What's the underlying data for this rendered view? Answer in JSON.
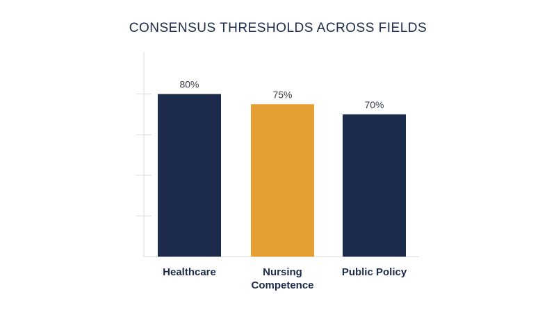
{
  "chart_data": {
    "type": "bar",
    "title": "CONSENSUS THRESHOLDS ACROSS FIELDS",
    "categories": [
      [
        "Healthcare"
      ],
      [
        "Nursing",
        "Competence"
      ],
      [
        "Public Policy"
      ]
    ],
    "values": [
      80,
      75,
      70
    ],
    "value_labels": [
      "80%",
      "75%",
      "70%"
    ],
    "bar_colors": [
      "#1c2b4b",
      "#e5a035",
      "#1c2b4b"
    ],
    "ylim": [
      0,
      100
    ],
    "y_ticks": [
      20,
      40,
      60,
      80
    ],
    "grid": false,
    "xlabel": "",
    "ylabel": ""
  }
}
